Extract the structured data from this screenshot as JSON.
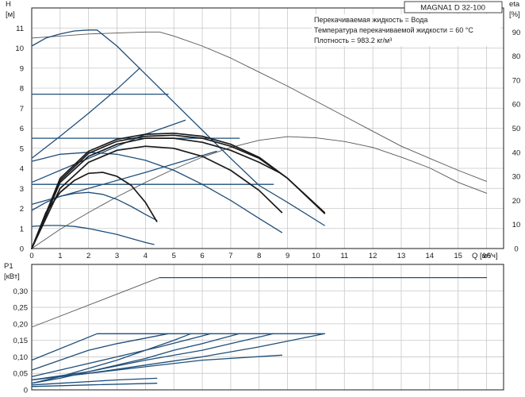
{
  "chart_data": [
    {
      "type": "line",
      "panel": "head",
      "title": "MAGNA1 D 32-100",
      "info_lines": [
        "Перекачиваемая жидкость = Вода",
        "Температура перекачиваемой жидкости = 60 °C",
        "Плотность = 983.2 кг/м³"
      ],
      "xlabel": "Q [м³/ч]",
      "ylabel_top": "H",
      "ylabel_bottom": "[м]",
      "y2label_top": "eta",
      "y2label_bottom": "[%]",
      "xlim": [
        0,
        16.6
      ],
      "ylim": [
        0,
        12
      ],
      "y2lim": [
        0,
        100
      ],
      "x_ticks": [
        "0",
        "1",
        "2",
        "3",
        "4",
        "5",
        "6",
        "7",
        "8",
        "9",
        "10",
        "11",
        "12",
        "13",
        "14",
        "15",
        "16"
      ],
      "y_ticks": [
        "0",
        "1",
        "2",
        "3",
        "4",
        "5",
        "6",
        "7",
        "8",
        "9",
        "10",
        "11"
      ],
      "y2_ticks": [
        "0",
        "10",
        "20",
        "30",
        "40",
        "50",
        "60",
        "70",
        "80",
        "90"
      ],
      "grid": true,
      "series": [
        {
          "role": "efficiency",
          "color": "#555555",
          "x": [
            0,
            1,
            2,
            3,
            4,
            5,
            6,
            7,
            8,
            9,
            10,
            11,
            12,
            13,
            14,
            15,
            16
          ],
          "y": [
            0,
            8,
            15,
            21.5,
            27.5,
            33,
            38,
            42,
            45,
            46.5,
            46,
            44.5,
            42,
            38,
            33.5,
            27.5,
            23
          ]
        },
        {
          "role": "max-curve",
          "color": "#555555",
          "x": [
            0,
            1,
            2,
            3,
            4,
            4.5,
            5,
            6,
            7,
            8,
            9,
            10,
            11,
            12,
            13,
            14,
            15,
            16
          ],
          "y": [
            10.5,
            10.6,
            10.7,
            10.75,
            10.8,
            10.8,
            10.6,
            10.1,
            9.5,
            8.8,
            8.1,
            7.35,
            6.6,
            5.85,
            5.1,
            4.5,
            3.9,
            3.35
          ]
        },
        {
          "role": "proportional-max",
          "color": "#1f4e79",
          "x": [
            0,
            0.5,
            1,
            1.5,
            2,
            2.3,
            3,
            4,
            5,
            6,
            7,
            8,
            9,
            10.3
          ],
          "y": [
            10.1,
            10.5,
            10.7,
            10.85,
            10.9,
            10.9,
            10.1,
            8.7,
            7.3,
            5.9,
            4.5,
            3.15,
            2.3,
            1.15
          ]
        },
        {
          "role": "proportional-high",
          "color": "#1f4e79",
          "x": [
            0,
            1,
            2,
            3,
            3.8
          ],
          "y": [
            4.5,
            5.6,
            6.75,
            7.95,
            9.0
          ]
        },
        {
          "role": "constant-7.7",
          "color": "#1f4e79",
          "x": [
            0,
            4.8
          ],
          "y": [
            7.7,
            7.7
          ]
        },
        {
          "role": "constant-5.5",
          "color": "#1f4e79",
          "x": [
            0,
            7.3
          ],
          "y": [
            5.5,
            5.5
          ]
        },
        {
          "role": "constant-3.2",
          "color": "#1f4e79",
          "x": [
            0,
            8.5
          ],
          "y": [
            3.2,
            3.2
          ]
        },
        {
          "role": "proportional-mid",
          "color": "#1f4e79",
          "x": [
            0,
            2,
            4,
            5.4
          ],
          "y": [
            3.3,
            4.5,
            5.7,
            6.4
          ]
        },
        {
          "role": "proportional-low",
          "color": "#1f4e79",
          "x": [
            0,
            2,
            4,
            6.5
          ],
          "y": [
            2.2,
            3.0,
            3.8,
            4.85
          ]
        },
        {
          "role": "speed-low-1",
          "color": "#1f4e79",
          "x": [
            0,
            0.5,
            1,
            1.5,
            2,
            2.5,
            3,
            3.5,
            4,
            4.3
          ],
          "y": [
            1.1,
            1.15,
            1.15,
            1.1,
            1.0,
            0.85,
            0.7,
            0.5,
            0.3,
            0.2
          ]
        },
        {
          "role": "speed-low-2",
          "color": "#1f4e79",
          "x": [
            0,
            0.5,
            1,
            1.5,
            2,
            2.5,
            3,
            3.5,
            4,
            4.4
          ],
          "y": [
            1.9,
            2.3,
            2.6,
            2.75,
            2.8,
            2.7,
            2.45,
            2.1,
            1.7,
            1.4
          ]
        },
        {
          "role": "speed-mid",
          "color": "#1f4e79",
          "x": [
            0,
            1,
            2,
            3,
            4,
            5,
            6,
            7,
            8,
            8.8
          ],
          "y": [
            4.35,
            4.7,
            4.8,
            4.7,
            4.4,
            3.9,
            3.2,
            2.4,
            1.5,
            0.8
          ]
        },
        {
          "role": "qh-1",
          "color": "#1a1a1a",
          "x": [
            0,
            0.5,
            1,
            1.5,
            2,
            2.5,
            3,
            3.5,
            4,
            4.4
          ],
          "y": [
            0,
            1.8,
            2.8,
            3.4,
            3.75,
            3.8,
            3.6,
            3.15,
            2.3,
            1.35
          ]
        },
        {
          "role": "qh-2",
          "color": "#1a1a1a",
          "x": [
            0,
            1,
            2,
            3,
            4,
            5,
            6,
            7,
            8,
            8.8
          ],
          "y": [
            0,
            3.0,
            4.3,
            4.9,
            5.1,
            5.0,
            4.6,
            3.9,
            2.9,
            1.8
          ]
        },
        {
          "role": "qh-3",
          "color": "#1a1a1a",
          "x": [
            0,
            1,
            2,
            3,
            4,
            5,
            6,
            7,
            8,
            8.7
          ],
          "y": [
            0,
            3.3,
            4.6,
            5.2,
            5.5,
            5.5,
            5.3,
            4.9,
            4.3,
            3.8
          ]
        },
        {
          "role": "qh-4",
          "color": "#1a1a1a",
          "x": [
            0,
            1,
            2,
            3,
            4,
            5,
            6,
            7,
            8,
            9,
            10.3
          ],
          "y": [
            0,
            3.4,
            4.75,
            5.35,
            5.6,
            5.65,
            5.5,
            5.1,
            4.5,
            3.5,
            1.8
          ]
        },
        {
          "role": "qh-5",
          "color": "#1a1a1a",
          "x": [
            0,
            1,
            2,
            3,
            4,
            5,
            6,
            7,
            8,
            9,
            10.3
          ],
          "y": [
            0,
            3.5,
            4.85,
            5.45,
            5.7,
            5.75,
            5.6,
            5.2,
            4.55,
            3.5,
            1.75
          ]
        }
      ]
    },
    {
      "type": "line",
      "panel": "power",
      "ylabel_top": "P1",
      "ylabel_bottom": "[кВт]",
      "xlim": [
        0,
        16.6
      ],
      "ylim": [
        0,
        0.38
      ],
      "y_ticks": [
        "0",
        "0,05",
        "0,10",
        "0,15",
        "0,20",
        "0,25",
        "0,30"
      ],
      "grid": true,
      "series": [
        {
          "role": "p-max-curve",
          "color": "#555555",
          "x": [
            0,
            4.5
          ],
          "y": [
            0.19,
            0.34
          ]
        },
        {
          "role": "p-max-flat",
          "color": "#1f4e79",
          "x": [
            4.5,
            16
          ],
          "y": [
            0.34,
            0.34
          ]
        },
        {
          "role": "p-prop-max",
          "color": "#1f4e79",
          "x": [
            0,
            2.3,
            10.3
          ],
          "y": [
            0.09,
            0.17,
            0.17
          ]
        },
        {
          "role": "p-a",
          "color": "#1f4e79",
          "x": [
            0,
            1,
            2,
            3,
            4,
            5,
            5.6
          ],
          "y": [
            0.02,
            0.04,
            0.065,
            0.09,
            0.12,
            0.15,
            0.17
          ]
        },
        {
          "role": "p-b",
          "color": "#1f4e79",
          "x": [
            0,
            1,
            2,
            3,
            4,
            5,
            6,
            7.3
          ],
          "y": [
            0.02,
            0.035,
            0.055,
            0.075,
            0.095,
            0.12,
            0.14,
            0.17
          ]
        },
        {
          "role": "p-c",
          "color": "#1f4e79",
          "x": [
            0,
            2,
            4,
            6,
            8.5
          ],
          "y": [
            0.03,
            0.055,
            0.09,
            0.12,
            0.17
          ]
        },
        {
          "role": "p-d",
          "color": "#1f4e79",
          "x": [
            0,
            2,
            4,
            6,
            8,
            10.3
          ],
          "y": [
            0.03,
            0.05,
            0.075,
            0.1,
            0.13,
            0.17
          ]
        },
        {
          "role": "p-e",
          "color": "#1f4e79",
          "x": [
            0,
            1,
            2,
            3,
            4.8
          ],
          "y": [
            0.06,
            0.09,
            0.12,
            0.14,
            0.17
          ]
        },
        {
          "role": "p-f",
          "color": "#1f4e79",
          "x": [
            0,
            1.5,
            3,
            4.5,
            6.3
          ],
          "y": [
            0.04,
            0.07,
            0.1,
            0.13,
            0.17
          ]
        },
        {
          "role": "p-g",
          "color": "#1f4e79",
          "x": [
            0,
            2,
            4,
            6,
            8.8
          ],
          "y": [
            0.03,
            0.05,
            0.07,
            0.09,
            0.105
          ]
        },
        {
          "role": "p-h",
          "color": "#1f4e79",
          "x": [
            0,
            1,
            2,
            3,
            4.4
          ],
          "y": [
            0.015,
            0.02,
            0.025,
            0.03,
            0.035
          ]
        },
        {
          "role": "p-i",
          "color": "#1f4e79",
          "x": [
            0,
            2,
            4.4
          ],
          "y": [
            0.01,
            0.015,
            0.02
          ]
        }
      ]
    }
  ]
}
